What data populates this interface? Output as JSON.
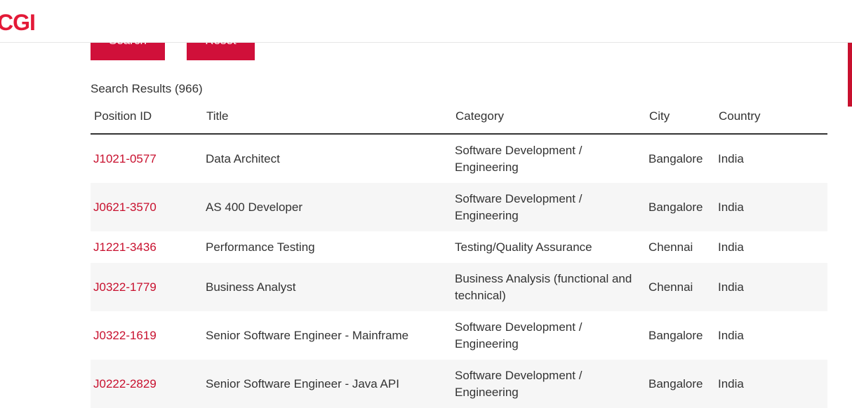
{
  "header": {
    "logo_text": "CGI"
  },
  "form": {
    "search_label": "Search",
    "reset_label": "Reset"
  },
  "results": {
    "label": "Search Results (966)"
  },
  "table": {
    "columns": [
      "Position ID",
      "Title",
      "Category",
      "City",
      "Country"
    ],
    "rows": [
      {
        "id": "J1021-0577",
        "title": "Data Architect",
        "category": "Software Development / Engineering",
        "city": "Bangalore",
        "country": "India"
      },
      {
        "id": "J0621-3570",
        "title": "AS 400 Developer",
        "category": "Software Development / Engineering",
        "city": "Bangalore",
        "country": "India"
      },
      {
        "id": "J1221-3436",
        "title": "Performance Testing",
        "category": "Testing/Quality Assurance",
        "city": "Chennai",
        "country": "India"
      },
      {
        "id": "J0322-1779",
        "title": "Business Analyst",
        "category": "Business Analysis (functional and technical)",
        "city": "Chennai",
        "country": "India"
      },
      {
        "id": "J0322-1619",
        "title": "Senior Software Engineer - Mainframe",
        "category": "Software Development / Engineering",
        "city": "Bangalore",
        "country": "India"
      },
      {
        "id": "J0222-2829",
        "title": "Senior Software Engineer - Java API",
        "category": "Software Development / Engineering",
        "city": "Bangalore",
        "country": "India"
      }
    ]
  },
  "colors": {
    "brand": "#e31937",
    "button": "#d0103a",
    "link": "#c8102e",
    "row_alt": "#f6f6f6"
  }
}
